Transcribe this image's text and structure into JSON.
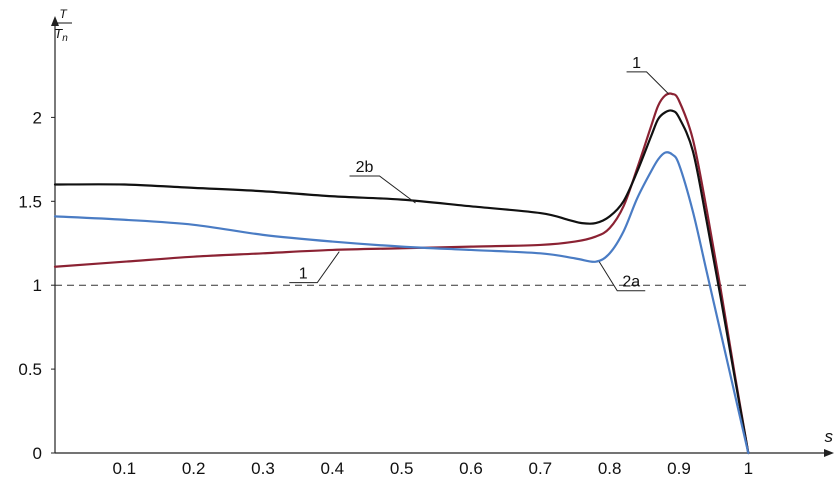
{
  "chart_data": {
    "type": "line",
    "ylabel_numerator": "T",
    "ylabel_denominator": "T",
    "ylabel_denominator_sub": "n",
    "xlabel": "s",
    "xlim": [
      0,
      1.14
    ],
    "ylim": [
      0,
      2.5
    ],
    "x_ticks": [
      0.1,
      0.2,
      0.3,
      0.4,
      0.5,
      0.6,
      0.7,
      0.8,
      0.9,
      1
    ],
    "x_tick_labels": [
      "0.1",
      "0.2",
      "0.3",
      "0.4",
      "0.5",
      "0.6",
      "0.7",
      "0.8",
      "0.9",
      "1"
    ],
    "y_ticks": [
      0,
      0.5,
      1,
      1.5,
      2
    ],
    "y_tick_labels": [
      "0",
      "0.5",
      "1",
      "1.5",
      "2"
    ],
    "reference_line": {
      "y": 1,
      "style": "dashed"
    },
    "series": [
      {
        "name": "1",
        "color": "#8b2233",
        "x": [
          0,
          0.1,
          0.2,
          0.3,
          0.4,
          0.5,
          0.6,
          0.7,
          0.75,
          0.78,
          0.8,
          0.82,
          0.84,
          0.86,
          0.87,
          0.88,
          0.89,
          0.9,
          0.92,
          0.94,
          0.96,
          0.98,
          1.0
        ],
        "y": [
          1.11,
          1.14,
          1.17,
          1.19,
          1.21,
          1.22,
          1.23,
          1.24,
          1.26,
          1.29,
          1.34,
          1.47,
          1.7,
          1.95,
          2.07,
          2.13,
          2.14,
          2.1,
          1.87,
          1.45,
          0.98,
          0.48,
          0.0
        ]
      },
      {
        "name": "2b",
        "color": "#111111",
        "x": [
          0,
          0.1,
          0.2,
          0.3,
          0.4,
          0.5,
          0.6,
          0.7,
          0.74,
          0.76,
          0.78,
          0.8,
          0.82,
          0.84,
          0.86,
          0.87,
          0.88,
          0.89,
          0.9,
          0.92,
          0.94,
          0.96,
          0.98,
          1.0
        ],
        "y": [
          1.6,
          1.6,
          1.58,
          1.56,
          1.53,
          1.51,
          1.47,
          1.43,
          1.39,
          1.37,
          1.37,
          1.41,
          1.5,
          1.68,
          1.89,
          1.99,
          2.03,
          2.04,
          2.0,
          1.8,
          1.38,
          0.93,
          0.46,
          0.0
        ]
      },
      {
        "name": "2a",
        "color": "#4a7cc4",
        "x": [
          0,
          0.1,
          0.2,
          0.3,
          0.4,
          0.5,
          0.6,
          0.7,
          0.75,
          0.78,
          0.8,
          0.82,
          0.84,
          0.86,
          0.87,
          0.88,
          0.89,
          0.9,
          0.92,
          0.94,
          0.96,
          0.98,
          1.0
        ],
        "y": [
          1.41,
          1.39,
          1.36,
          1.3,
          1.26,
          1.23,
          1.21,
          1.19,
          1.16,
          1.14,
          1.19,
          1.32,
          1.52,
          1.68,
          1.75,
          1.79,
          1.78,
          1.72,
          1.44,
          1.08,
          0.72,
          0.36,
          0.0
        ]
      }
    ],
    "annotations": [
      {
        "label": "1",
        "series": "1",
        "at_x": 0.885,
        "at_y": 2.14
      },
      {
        "label": "2b",
        "series": "2b",
        "at_x": 0.52,
        "at_y": 1.49
      },
      {
        "label": "1",
        "series": "1",
        "at_x": 0.41,
        "at_y": 1.2
      },
      {
        "label": "2a",
        "series": "2a",
        "at_x": 0.785,
        "at_y": 1.14
      }
    ]
  }
}
